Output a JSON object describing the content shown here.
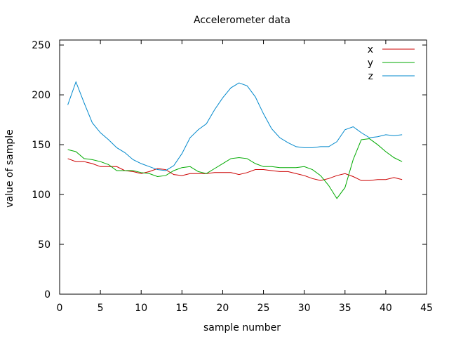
{
  "chart_data": {
    "type": "line",
    "title": "Accelerometer data",
    "xlabel": "sample number",
    "ylabel": "value of sample",
    "xlim": [
      0,
      45
    ],
    "ylim": [
      0,
      255
    ],
    "xticks": [
      0,
      5,
      10,
      15,
      20,
      25,
      30,
      35,
      40,
      45
    ],
    "yticks": [
      0,
      50,
      100,
      150,
      200,
      250
    ],
    "grid": false,
    "legend_position": "top-right",
    "x": [
      1,
      2,
      3,
      4,
      5,
      6,
      7,
      8,
      9,
      10,
      11,
      12,
      13,
      14,
      15,
      16,
      17,
      18,
      19,
      20,
      21,
      22,
      23,
      24,
      25,
      26,
      27,
      28,
      29,
      30,
      31,
      32,
      33,
      34,
      35,
      36,
      37,
      38,
      39,
      40,
      41,
      42
    ],
    "series": [
      {
        "name": "x",
        "color": "#cc0000",
        "values": [
          136,
          133,
          133,
          131,
          128,
          128,
          128,
          124,
          123,
          121,
          123,
          126,
          125,
          120,
          119,
          121,
          121,
          121,
          122,
          122,
          122,
          120,
          122,
          125,
          125,
          124,
          123,
          123,
          121,
          119,
          116,
          114,
          116,
          119,
          121,
          118,
          114,
          114,
          115,
          115,
          117,
          115
        ]
      },
      {
        "name": "y",
        "color": "#00aa00",
        "values": [
          145,
          143,
          136,
          135,
          133,
          130,
          124,
          124,
          124,
          122,
          121,
          118,
          119,
          124,
          127,
          128,
          123,
          121,
          126,
          131,
          136,
          137,
          136,
          131,
          128,
          128,
          127,
          127,
          127,
          128,
          125,
          119,
          109,
          96,
          107,
          135,
          155,
          156,
          150,
          143,
          137,
          133
        ]
      },
      {
        "name": "z",
        "color": "#0088cc",
        "values": [
          190,
          213,
          192,
          172,
          162,
          155,
          147,
          142,
          135,
          131,
          128,
          125,
          124,
          129,
          141,
          157,
          165,
          171,
          185,
          197,
          207,
          212,
          209,
          198,
          181,
          166,
          157,
          152,
          148,
          147,
          147,
          148,
          148,
          153,
          165,
          168,
          162,
          157,
          158,
          160,
          159,
          160
        ]
      }
    ]
  }
}
